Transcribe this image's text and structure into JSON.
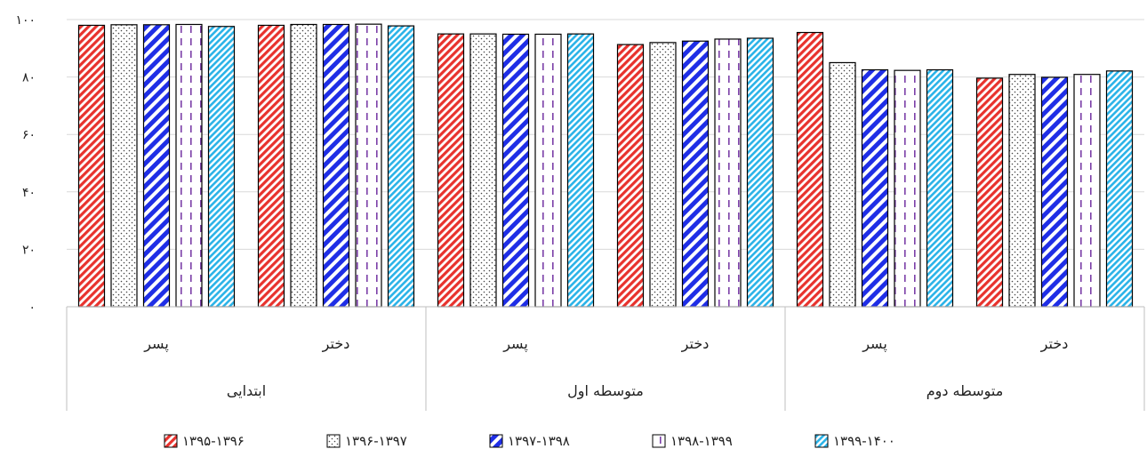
{
  "chart_data": {
    "type": "bar",
    "ylim": [
      0,
      100
    ],
    "yticks": [
      "۰",
      "۲۰",
      "۴۰",
      "۶۰",
      "۸۰",
      "۱۰۰"
    ],
    "grid": true,
    "legend_position": "bottom",
    "groups": [
      {
        "name": "ابتدایی",
        "subgroups": [
          "پسر",
          "دختر"
        ]
      },
      {
        "name": "متوسطه اول",
        "subgroups": [
          "پسر",
          "دختر"
        ]
      },
      {
        "name": "متوسطه دوم",
        "subgroups": [
          "پسر",
          "دختر"
        ]
      }
    ],
    "categories": [
      "پسر",
      "دختر",
      "پسر",
      "دختر",
      "پسر",
      "دختر"
    ],
    "series": [
      {
        "name": "۱۳۹۵-۱۳۹۶",
        "color": "#e8322d",
        "pattern": "diag-red",
        "values": [
          98.0,
          98.0,
          95.0,
          91.3,
          95.5,
          79.6
        ]
      },
      {
        "name": "۱۳۹۶-۱۳۹۷",
        "color": "#555555",
        "pattern": "dots",
        "values": [
          98.2,
          98.3,
          95.0,
          92.0,
          85.0,
          80.9
        ]
      },
      {
        "name": "۱۳۹۷-۱۳۹۸",
        "color": "#1f2ee6",
        "pattern": "diag-blue",
        "values": [
          98.2,
          98.3,
          94.9,
          92.5,
          82.5,
          79.9
        ]
      },
      {
        "name": "۱۳۹۸-۱۳۹۹",
        "color": "#7b3fa8",
        "pattern": "dash-purple",
        "values": [
          98.3,
          98.4,
          94.9,
          93.2,
          82.3,
          80.9
        ]
      },
      {
        "name": "۱۳۹۹-۱۴۰۰",
        "color": "#2ab3e8",
        "pattern": "diag-cyan",
        "values": [
          97.6,
          97.8,
          95.0,
          93.5,
          82.5,
          82.1
        ]
      }
    ]
  }
}
